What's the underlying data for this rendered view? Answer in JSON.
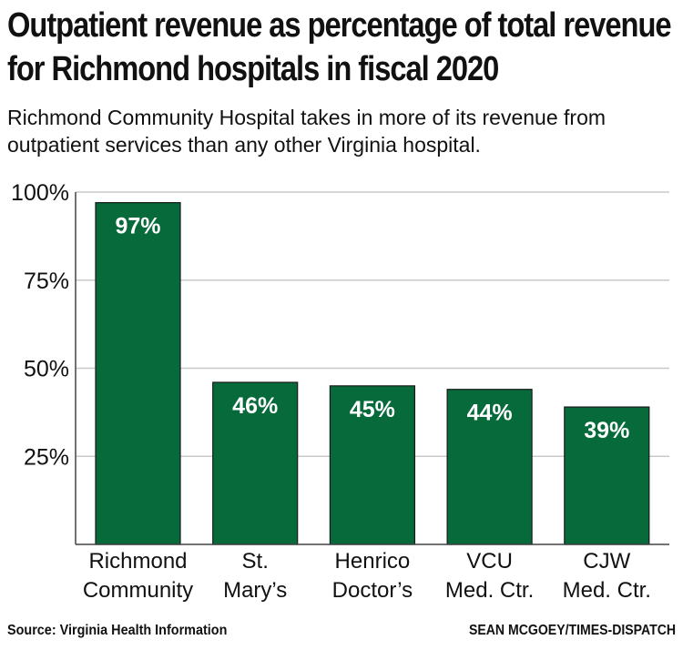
{
  "chart_data": {
    "type": "bar",
    "title": "Outpatient revenue as percentage of total revenue for Richmond hospitals in fiscal 2020",
    "subtitle": "Richmond Community Hospital takes in more of its revenue from outpatient services than any other Virginia hospital.",
    "categories": [
      [
        "Richmond",
        "Community"
      ],
      [
        "St.",
        "Mary’s"
      ],
      [
        "Henrico",
        "Doctor’s"
      ],
      [
        "VCU",
        "Med. Ctr."
      ],
      [
        "CJW",
        "Med. Ctr."
      ]
    ],
    "values": [
      97,
      46,
      45,
      44,
      39
    ],
    "data_labels": [
      "97%",
      "46%",
      "45%",
      "44%",
      "39%"
    ],
    "yticks": [
      25,
      50,
      75,
      100
    ],
    "ytick_labels": [
      "25%",
      "50%",
      "75%",
      "100%"
    ],
    "ylim": [
      0,
      100
    ],
    "grid": true,
    "bar_color": "#066a3a",
    "source": "Source: Virginia Health Information",
    "credit": "SEAN MCGOEY/TIMES-DISPATCH"
  }
}
